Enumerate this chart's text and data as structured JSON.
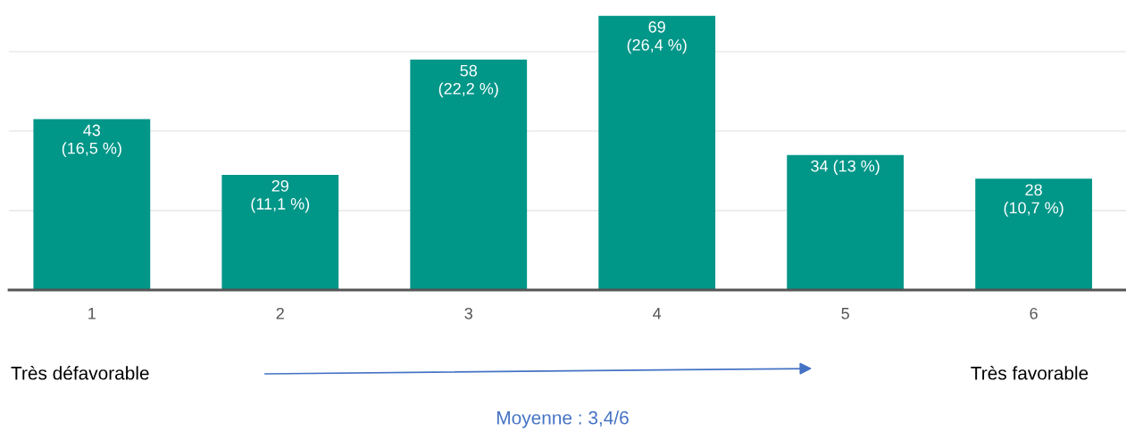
{
  "chart_data": {
    "type": "bar",
    "categories": [
      "1",
      "2",
      "3",
      "4",
      "5",
      "6"
    ],
    "values": [
      43,
      29,
      58,
      69,
      34,
      28
    ],
    "color": "#009688",
    "value_labels": [
      "43\n(16,5 %)",
      "29\n(11,1 %)",
      "58\n(22,2 %)",
      "69\n(26,4 %)",
      "34 (13 %)",
      "28\n(10,7 %)"
    ],
    "yticks": [
      {
        "value": 0,
        "label": null
      },
      {
        "value": 20,
        "label": null
      },
      {
        "value": 40,
        "label": null
      },
      {
        "value": 60,
        "label": null
      }
    ],
    "grid": "y",
    "tick_labels": "x",
    "annotations": [
      "Très défavorable",
      "Très favorable",
      "Moyenne : 3,4/6"
    ]
  }
}
